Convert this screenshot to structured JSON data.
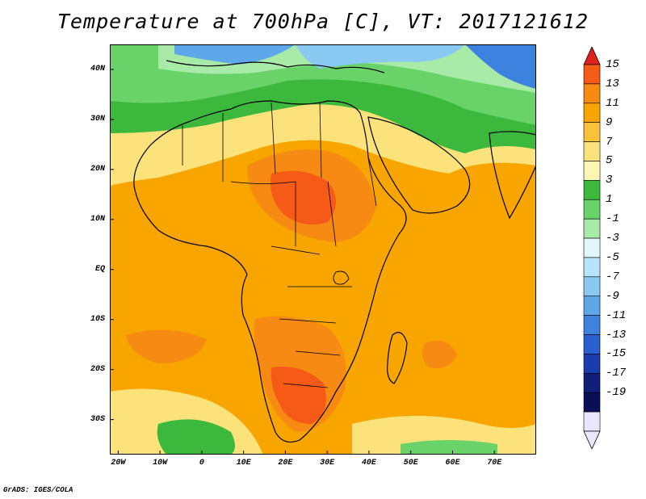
{
  "title": "Temperature at 700hPa [C], VT: 2017121612",
  "credit": "GrADS: IGES/COLA",
  "map": {
    "lat_labels": [
      "40N",
      "30N",
      "20N",
      "10N",
      "EQ",
      "10S",
      "20S",
      "30S"
    ],
    "lon_labels": [
      "20W",
      "10W",
      "0",
      "10E",
      "20E",
      "30E",
      "40E",
      "50E",
      "60E",
      "70E"
    ],
    "lat_values": [
      40,
      30,
      20,
      10,
      0,
      -10,
      -20,
      -30
    ],
    "lon_values": [
      -20,
      -10,
      0,
      10,
      20,
      30,
      40,
      50,
      60,
      70
    ],
    "lon_range": [
      -22,
      80
    ],
    "lat_range": [
      -37,
      45
    ],
    "variable": "Temperature at 700hPa",
    "units": "C"
  },
  "colorbar": {
    "labels": [
      "15",
      "13",
      "11",
      "9",
      "7",
      "5",
      "3",
      "1",
      "-1",
      "-3",
      "-5",
      "-7",
      "-9",
      "-11",
      "-13",
      "-15",
      "-17",
      "-19"
    ],
    "colors_top_to_bottom": [
      "#f5211b",
      "#f65a17",
      "#f78a12",
      "#f8a500",
      "#f9c23a",
      "#fbe27a",
      "#fdf5b3",
      "#3cb83c",
      "#69d369",
      "#a8eba8",
      "#e2f7f7",
      "#b7e4f8",
      "#8ac9f2",
      "#5ea8ea",
      "#3e82e0",
      "#2a5fd1",
      "#1b3cae",
      "#0f1f7a",
      "#0a0f5a",
      "#e9e6ff"
    ],
    "top_arrow_color": "#e0201a",
    "bottom_arrow_color": "#e9e6ff"
  }
}
